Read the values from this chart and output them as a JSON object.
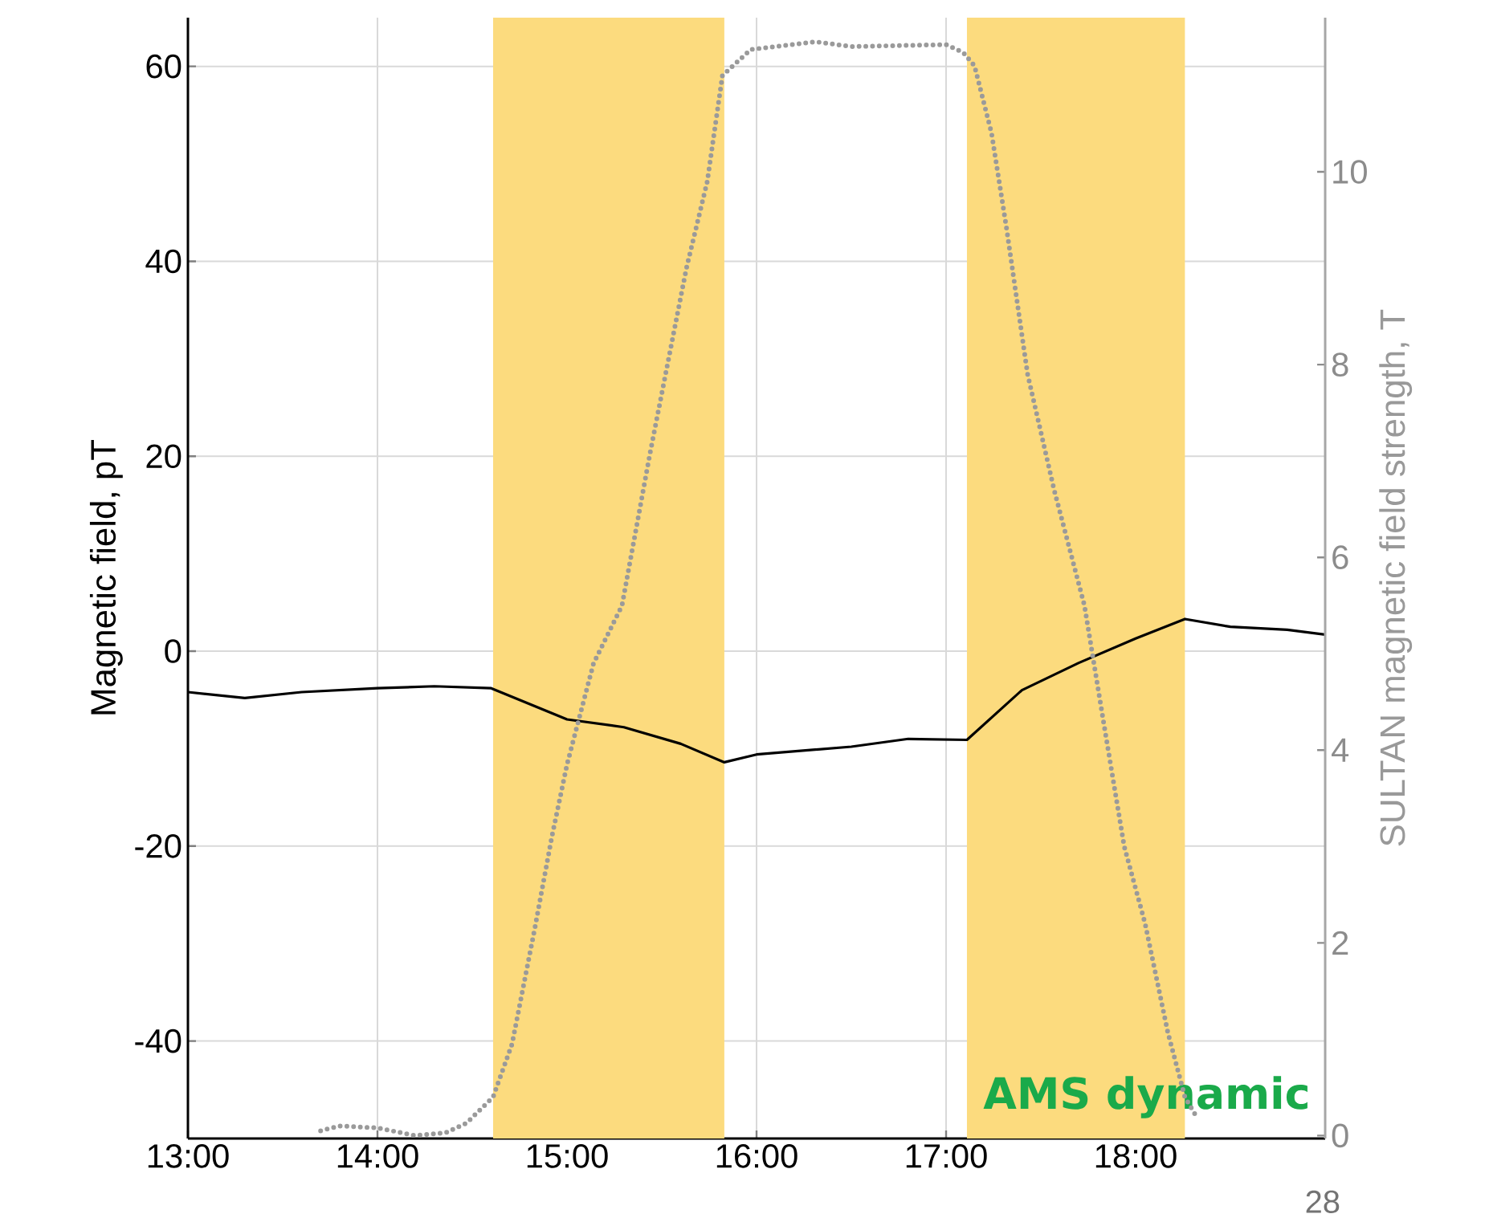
{
  "chart_data": {
    "type": "line",
    "xlim": [
      13,
      19
    ],
    "ylim": [
      -50,
      65
    ],
    "y2lim": [
      -0.03,
      11.6
    ],
    "xticks": [
      {
        "value": 13,
        "label": "13:00"
      },
      {
        "value": 14,
        "label": "14:00"
      },
      {
        "value": 15,
        "label": "15:00"
      },
      {
        "value": 16,
        "label": "16:00"
      },
      {
        "value": 17,
        "label": "17:00"
      },
      {
        "value": 18,
        "label": "18:00"
      }
    ],
    "yticks": [
      -40,
      -20,
      0,
      20,
      40,
      60
    ],
    "y2ticks": [
      0,
      2,
      4,
      6,
      8,
      10
    ],
    "ylabel": "Magnetic field, pT",
    "y2label": "SULTAN magnetic field strength, T",
    "grid": true,
    "legend": false,
    "marker": "none",
    "bands": [
      {
        "axis": "x",
        "from": 14.61,
        "to": 15.83,
        "color": "#fcdb7e"
      },
      {
        "axis": "x",
        "from": 17.11,
        "to": 18.26,
        "color": "#fcdb7e"
      }
    ],
    "series": [
      {
        "color": "#000000",
        "line_style": "solid",
        "x": [
          13.0,
          13.3,
          13.6,
          14.0,
          14.3,
          14.6,
          15.0,
          15.3,
          15.6,
          15.83,
          16.0,
          16.5,
          16.8,
          17.11,
          17.4,
          17.7,
          18.0,
          18.26,
          18.5,
          18.8,
          19.0
        ],
        "values": [
          -4.2,
          -4.8,
          -4.2,
          -3.8,
          -3.6,
          -3.8,
          -7.0,
          -7.8,
          -9.5,
          -11.4,
          -10.6,
          -9.8,
          -9.0,
          -9.1,
          -4.0,
          -1.2,
          1.3,
          3.3,
          2.5,
          2.2,
          1.7
        ]
      },
      {
        "color": "#9a9a9a",
        "line_style": "dotted",
        "axis": "y2",
        "x": [
          13.7,
          13.8,
          14.0,
          14.2,
          14.36,
          14.47,
          14.61,
          14.71,
          14.83,
          14.92,
          15.0,
          15.14,
          15.29,
          15.44,
          15.63,
          15.74,
          15.82,
          15.97,
          16.31,
          16.5,
          17.0,
          17.09,
          17.15,
          17.24,
          17.32,
          17.43,
          17.57,
          17.73,
          17.83,
          17.94,
          18.05,
          18.17,
          18.26,
          18.32
        ],
        "values": [
          0.05,
          0.1,
          0.08,
          0.0,
          0.03,
          0.13,
          0.4,
          0.95,
          2.15,
          3.1,
          3.85,
          4.9,
          5.5,
          7.1,
          9.0,
          9.9,
          11.0,
          11.27,
          11.35,
          11.3,
          11.32,
          11.24,
          11.1,
          10.4,
          9.4,
          7.9,
          6.7,
          5.5,
          4.3,
          3.0,
          2.2,
          1.07,
          0.4,
          0.2
        ]
      }
    ],
    "annotations": [
      "AMS dynamic",
      "28"
    ]
  }
}
